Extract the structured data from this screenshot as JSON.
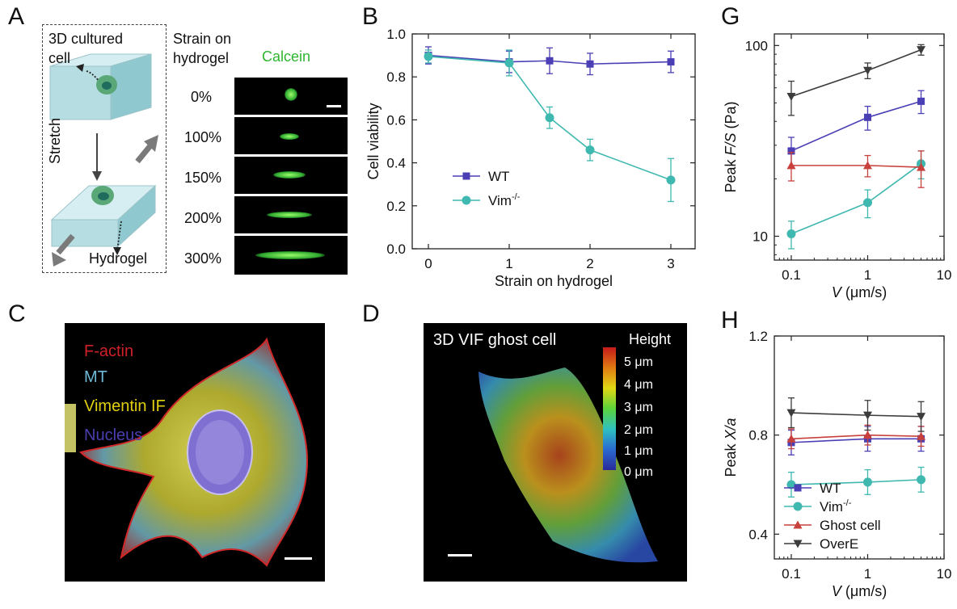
{
  "panels": {
    "A": {
      "label": "A",
      "cell_label_line1": "3D cultured",
      "cell_label_line2": "cell",
      "stretch_label": "Stretch",
      "hydrogel_label": "Hydrogel",
      "strain_header_line1": "Strain on",
      "strain_header_line2": "hydrogel",
      "stain_label": "Calcein",
      "strains": [
        "0%",
        "100%",
        "150%",
        "200%",
        "300%"
      ]
    },
    "B": {
      "label": "B"
    },
    "C": {
      "label": "C",
      "legend": [
        {
          "text": "F-actin",
          "color": "#d0202a"
        },
        {
          "text": "MT",
          "color": "#6fb8d8"
        },
        {
          "text": "Vimentin IF",
          "color": "#e0d010"
        },
        {
          "text": "Nucleus",
          "color": "#4a3fb0"
        }
      ]
    },
    "D": {
      "label": "D",
      "title": "3D VIF ghost cell",
      "scale_title": "Height",
      "scale_ticks": [
        "5 μm",
        "4 μm",
        "3 μm",
        "2 μm",
        "1 μm",
        "0 μm"
      ]
    },
    "G": {
      "label": "G"
    },
    "H": {
      "label": "H"
    }
  },
  "chart_data": [
    {
      "id": "B",
      "type": "line",
      "xlabel": "Strain on hydrogel",
      "ylabel": "Cell viability",
      "xlim": [
        -0.2,
        3.3
      ],
      "ylim": [
        0.0,
        1.0
      ],
      "xticks": [
        0,
        1,
        2,
        3
      ],
      "yticks": [
        0.0,
        0.2,
        0.4,
        0.6,
        0.8,
        1.0
      ],
      "xtick_labels": [
        "0",
        "1",
        "2",
        "3"
      ],
      "ytick_labels": [
        "0.0",
        "0.2",
        "0.4",
        "0.6",
        "0.8",
        "1.0"
      ],
      "legend_position": "bottom-left",
      "series": [
        {
          "name": "WT",
          "name_sup": "",
          "marker": "square",
          "color": "#4b3fb5",
          "x": [
            0,
            1,
            1.5,
            2,
            3
          ],
          "y": [
            0.9,
            0.87,
            0.875,
            0.86,
            0.87
          ],
          "err": [
            0.04,
            0.05,
            0.06,
            0.05,
            0.05
          ]
        },
        {
          "name": "Vim",
          "name_sup": "-/-",
          "marker": "circle",
          "color": "#3fb8b0",
          "x": [
            0,
            1,
            1.5,
            2,
            3
          ],
          "y": [
            0.895,
            0.865,
            0.61,
            0.46,
            0.32
          ],
          "err": [
            0.03,
            0.06,
            0.05,
            0.05,
            0.1
          ]
        }
      ]
    },
    {
      "id": "G",
      "type": "line",
      "xlabel_var": "V",
      "xlabel_unit": " (μm/s)",
      "ylabel_pre": "Peak ",
      "ylabel_var": "F/S",
      "ylabel_unit": " (Pa)",
      "xscale": "log",
      "yscale": "log",
      "xlim": [
        0.06,
        10
      ],
      "ylim": [
        7.5,
        115
      ],
      "xticks": [
        0.1,
        1,
        10
      ],
      "yticks": [
        10,
        100
      ],
      "xtick_labels": [
        "0.1",
        "1",
        "10"
      ],
      "ytick_labels": [
        "10",
        "100"
      ],
      "series": [
        {
          "name": "WT",
          "marker": "square",
          "color": "#4b3fb5",
          "x": [
            0.1,
            1,
            5
          ],
          "y": [
            28,
            42,
            51
          ],
          "err": [
            5,
            6,
            7
          ]
        },
        {
          "name": "Vim-/-",
          "marker": "circle",
          "color": "#3fb8b0",
          "x": [
            0.1,
            1,
            5
          ],
          "y": [
            10.3,
            15,
            24
          ],
          "err": [
            1.7,
            2.5,
            4
          ]
        },
        {
          "name": "Ghost cell",
          "marker": "triangle-up",
          "color": "#c8403c",
          "x": [
            0.1,
            1,
            5
          ],
          "y": [
            23.5,
            23.5,
            23
          ],
          "err": [
            4,
            3,
            5
          ]
        },
        {
          "name": "OverE",
          "marker": "triangle-down",
          "color": "#3c3c3c",
          "x": [
            0.1,
            1,
            5
          ],
          "y": [
            54,
            74,
            95
          ],
          "err": [
            11,
            7,
            6
          ]
        }
      ]
    },
    {
      "id": "H",
      "type": "line",
      "xlabel_var": "V",
      "xlabel_unit": " (μm/s)",
      "ylabel_pre": "Peak ",
      "ylabel_var": "X/a",
      "ylabel_unit": "",
      "xscale": "log",
      "xlim": [
        0.06,
        10
      ],
      "ylim": [
        0.3,
        1.2
      ],
      "xticks": [
        0.1,
        1,
        10
      ],
      "yticks": [
        0.4,
        0.8,
        1.2
      ],
      "xtick_labels": [
        "0.1",
        "1",
        "10"
      ],
      "ytick_labels": [
        "0.4",
        "0.8",
        "1.2"
      ],
      "legend_position": "bottom-left",
      "series": [
        {
          "name": "WT",
          "name_sup": "",
          "marker": "square",
          "color": "#4b3fb5",
          "x": [
            0.1,
            1,
            5
          ],
          "y": [
            0.77,
            0.785,
            0.785
          ],
          "err": [
            0.05,
            0.05,
            0.05
          ]
        },
        {
          "name": "Vim",
          "name_sup": "-/-",
          "marker": "circle",
          "color": "#3fb8b0",
          "x": [
            0.1,
            1,
            5
          ],
          "y": [
            0.6,
            0.61,
            0.62
          ],
          "err": [
            0.05,
            0.05,
            0.05
          ]
        },
        {
          "name": "Ghost cell",
          "name_sup": "",
          "marker": "triangle-up",
          "color": "#c8403c",
          "x": [
            0.1,
            1,
            5
          ],
          "y": [
            0.785,
            0.8,
            0.795
          ],
          "err": [
            0.04,
            0.04,
            0.04
          ]
        },
        {
          "name": "OverE",
          "name_sup": "",
          "marker": "triangle-down",
          "color": "#3c3c3c",
          "x": [
            0.1,
            1,
            5
          ],
          "y": [
            0.89,
            0.88,
            0.875
          ],
          "err": [
            0.06,
            0.06,
            0.06
          ]
        }
      ]
    }
  ]
}
